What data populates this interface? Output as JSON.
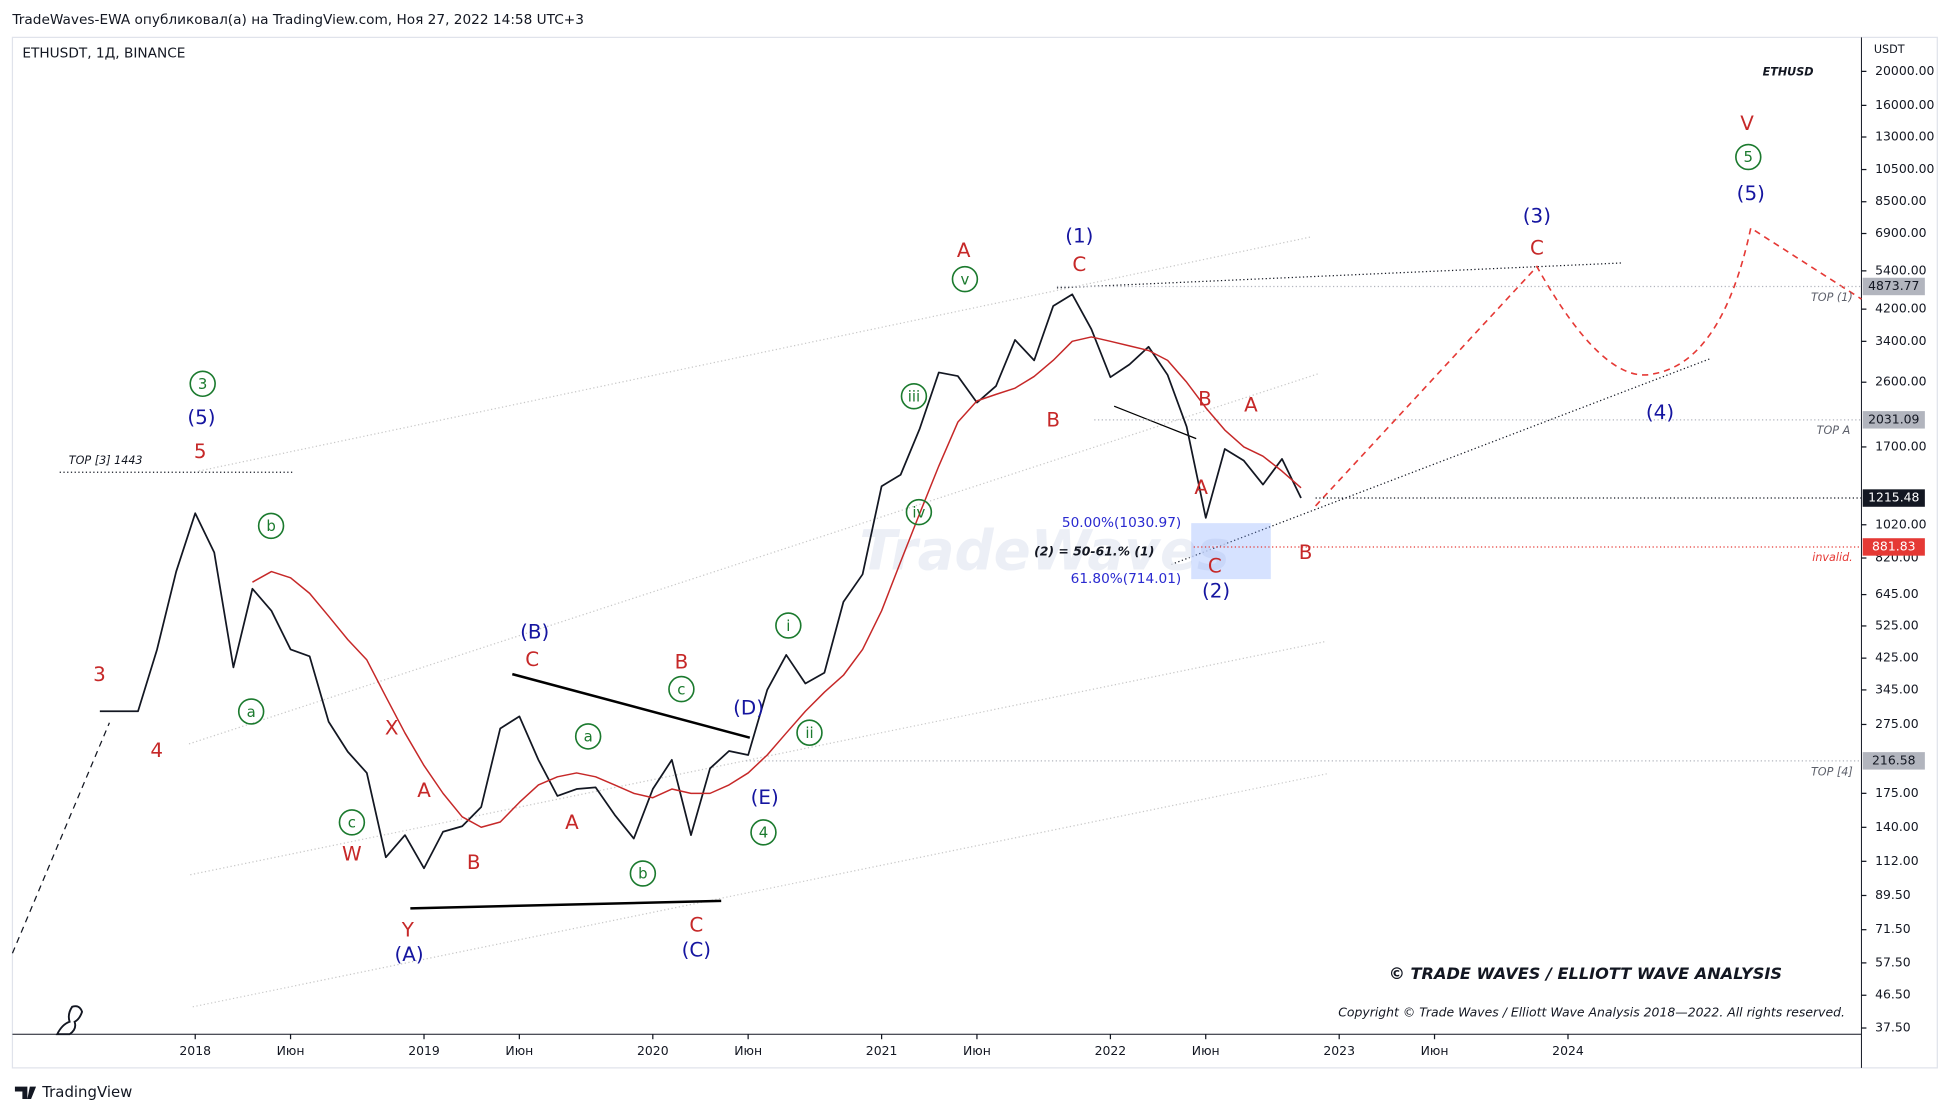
{
  "header": {
    "publisher": "TradeWaves-EWA опубликовал(а) на TradingView.com, Ноя 27, 2022 14:58 UTC+3",
    "symbol": "ETHUSDT, 1Д, BINANCE",
    "currency": "USDT",
    "footer": "TradingView"
  },
  "chart_data": {
    "type": "line",
    "log_scale": true,
    "xlim": [
      "2017-04",
      "2025-04"
    ],
    "ylim": [
      36,
      25000
    ],
    "xticks": [
      {
        "value": "2018-01",
        "label": "2018"
      },
      {
        "value": "2018-06",
        "label": "Июн"
      },
      {
        "value": "2019-01",
        "label": "2019"
      },
      {
        "value": "2019-06",
        "label": "Июн"
      },
      {
        "value": "2020-01",
        "label": "2020"
      },
      {
        "value": "2020-06",
        "label": "Июн"
      },
      {
        "value": "2021-01",
        "label": "2021"
      },
      {
        "value": "2021-06",
        "label": "Июн"
      },
      {
        "value": "2022-01",
        "label": "2022"
      },
      {
        "value": "2022-06",
        "label": "Июн"
      },
      {
        "value": "2023-01",
        "label": "2023"
      },
      {
        "value": "2023-06",
        "label": "Июн"
      },
      {
        "value": "2024-01",
        "label": "2024"
      }
    ],
    "yticks": [
      {
        "value": 20000,
        "label": "20000.00"
      },
      {
        "value": 16000,
        "label": "16000.00"
      },
      {
        "value": 13000,
        "label": "13000.00"
      },
      {
        "value": 10500,
        "label": "10500.00"
      },
      {
        "value": 8500,
        "label": "8500.00"
      },
      {
        "value": 6900,
        "label": "6900.00"
      },
      {
        "value": 5400,
        "label": "5400.00"
      },
      {
        "value": 4200,
        "label": "4200.00"
      },
      {
        "value": 3400,
        "label": "3400.00"
      },
      {
        "value": 2600,
        "label": "2600.00"
      },
      {
        "value": 1700,
        "label": "1700.00"
      },
      {
        "value": 1020,
        "label": "1020.00"
      },
      {
        "value": 820,
        "label": "820.00"
      },
      {
        "value": 645,
        "label": "645.00"
      },
      {
        "value": 525,
        "label": "525.00"
      },
      {
        "value": 425,
        "label": "425.00"
      },
      {
        "value": 345,
        "label": "345.00"
      },
      {
        "value": 275,
        "label": "275.00"
      },
      {
        "value": 175,
        "label": "175.00"
      },
      {
        "value": 140,
        "label": "140.00"
      },
      {
        "value": 112,
        "label": "112.00"
      },
      {
        "value": 89.5,
        "label": "89.50"
      },
      {
        "value": 71.5,
        "label": "71.50"
      },
      {
        "value": 57.5,
        "label": "57.50"
      },
      {
        "value": 46.5,
        "label": "46.50"
      },
      {
        "value": 37.5,
        "label": "37.50"
      }
    ],
    "price_labels": [
      {
        "value": 4873.77,
        "label": "4873.77",
        "color": "#b2b5be"
      },
      {
        "value": 2031.09,
        "label": "2031.09",
        "color": "#b2b5be"
      },
      {
        "value": 1215.48,
        "label": "1215.48",
        "color": "#131722"
      },
      {
        "value": 881.83,
        "label": "881.83",
        "color": "#e53935"
      },
      {
        "value": 216.58,
        "label": "216.58",
        "color": "#b2b5be"
      }
    ],
    "fib": [
      {
        "value": 1030.97,
        "label": "50.00%(1030.97)"
      },
      {
        "value": 714.01,
        "label": "61.80%(714.01)"
      }
    ],
    "x": [
      "2017-08",
      "2017-09",
      "2017-10",
      "2017-11",
      "2017-12",
      "2018-01",
      "2018-02",
      "2018-03",
      "2018-04",
      "2018-05",
      "2018-06",
      "2018-07",
      "2018-08",
      "2018-09",
      "2018-10",
      "2018-11",
      "2018-12",
      "2019-01",
      "2019-02",
      "2019-03",
      "2019-04",
      "2019-05",
      "2019-06",
      "2019-07",
      "2019-08",
      "2019-09",
      "2019-10",
      "2019-11",
      "2019-12",
      "2020-01",
      "2020-02",
      "2020-03",
      "2020-04",
      "2020-05",
      "2020-06",
      "2020-07",
      "2020-08",
      "2020-09",
      "2020-10",
      "2020-11",
      "2020-12",
      "2021-01",
      "2021-02",
      "2021-03",
      "2021-04",
      "2021-05",
      "2021-06",
      "2021-07",
      "2021-08",
      "2021-09",
      "2021-10",
      "2021-11",
      "2021-12",
      "2022-01",
      "2022-02",
      "2022-03",
      "2022-04",
      "2022-05",
      "2022-06",
      "2022-07",
      "2022-08",
      "2022-09",
      "2022-10",
      "2022-11"
    ],
    "series": [
      {
        "color": "#131722",
        "values": [
          300,
          300,
          300,
          450,
          750,
          1100,
          850,
          400,
          670,
          580,
          450,
          430,
          280,
          230,
          200,
          115,
          133,
          107,
          136,
          141,
          160,
          268,
          290,
          218,
          172,
          180,
          182,
          152,
          130,
          180,
          218,
          133,
          206,
          231,
          225,
          345,
          434,
          360,
          386,
          615,
          737,
          1314,
          1416,
          1919,
          2773,
          2707,
          2275,
          2536,
          3433,
          3001,
          4288,
          4631,
          3683,
          2688,
          2922,
          3282,
          2727,
          1942,
          1067,
          1678,
          1554,
          1328,
          1572,
          1215.48
        ]
      },
      {
        "color": "#c62828",
        "values": [
          null,
          null,
          null,
          null,
          null,
          null,
          null,
          null,
          700,
          750,
          720,
          650,
          560,
          480,
          420,
          330,
          260,
          210,
          175,
          150,
          140,
          145,
          165,
          185,
          195,
          200,
          195,
          185,
          175,
          170,
          180,
          175,
          175,
          185,
          200,
          225,
          260,
          300,
          340,
          380,
          450,
          580,
          800,
          1100,
          1500,
          2000,
          2300,
          2400,
          2500,
          2700,
          3000,
          3400,
          3500,
          3400,
          3300,
          3200,
          3000,
          2600,
          2200,
          1900,
          1700,
          1600,
          1450,
          1300
        ]
      }
    ],
    "annotations": [
      "3",
      "4",
      "5",
      "(5)",
      "3",
      "b",
      "a",
      "c",
      "W",
      "X",
      "A",
      "B",
      "Y",
      "(A)",
      "(B)",
      "C",
      "a",
      "A",
      "b",
      "B",
      "c",
      "(D)",
      "(E)",
      "4",
      "C",
      "(C)",
      "i",
      "ii",
      "iii",
      "iv",
      "v",
      "A",
      "(1)",
      "C",
      "B",
      "B",
      "A",
      "C",
      "(2)",
      "A",
      "B",
      "(3)",
      "C",
      "V",
      "5",
      "(5)",
      "(4)"
    ],
    "notes": [
      "TOP [3] 1443",
      "TOP (1)",
      "TOP A",
      "TOP [4]",
      "invalid.",
      "ETHUSD",
      "(2) = 50-61.% (1)"
    ],
    "watermark": "TradeWaves",
    "brand": "© TRADE WAVES / ELLIOTT WAVE ANALYSIS",
    "copyright": "Copyright © Trade Waves / Elliott Wave Analysis 2018—2022. All rights reserved."
  }
}
